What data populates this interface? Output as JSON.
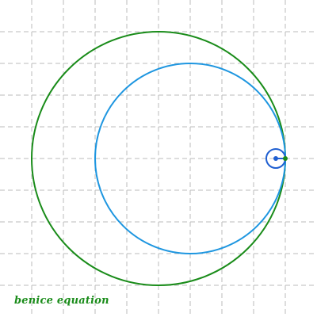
{
  "caption": "benice equation",
  "colors": {
    "background": "#ffffff",
    "grid": "#bbbbbb",
    "outer_circle": "#1a8c1a",
    "middle_circle": "#1e96e0",
    "small_circle": "#1f5fd1",
    "center_dot": "#1f5fd1",
    "tip_dot": "#1a8c1a",
    "caption": "#1a8c1a"
  },
  "grid": {
    "style": "dashed",
    "visible": true
  }
}
